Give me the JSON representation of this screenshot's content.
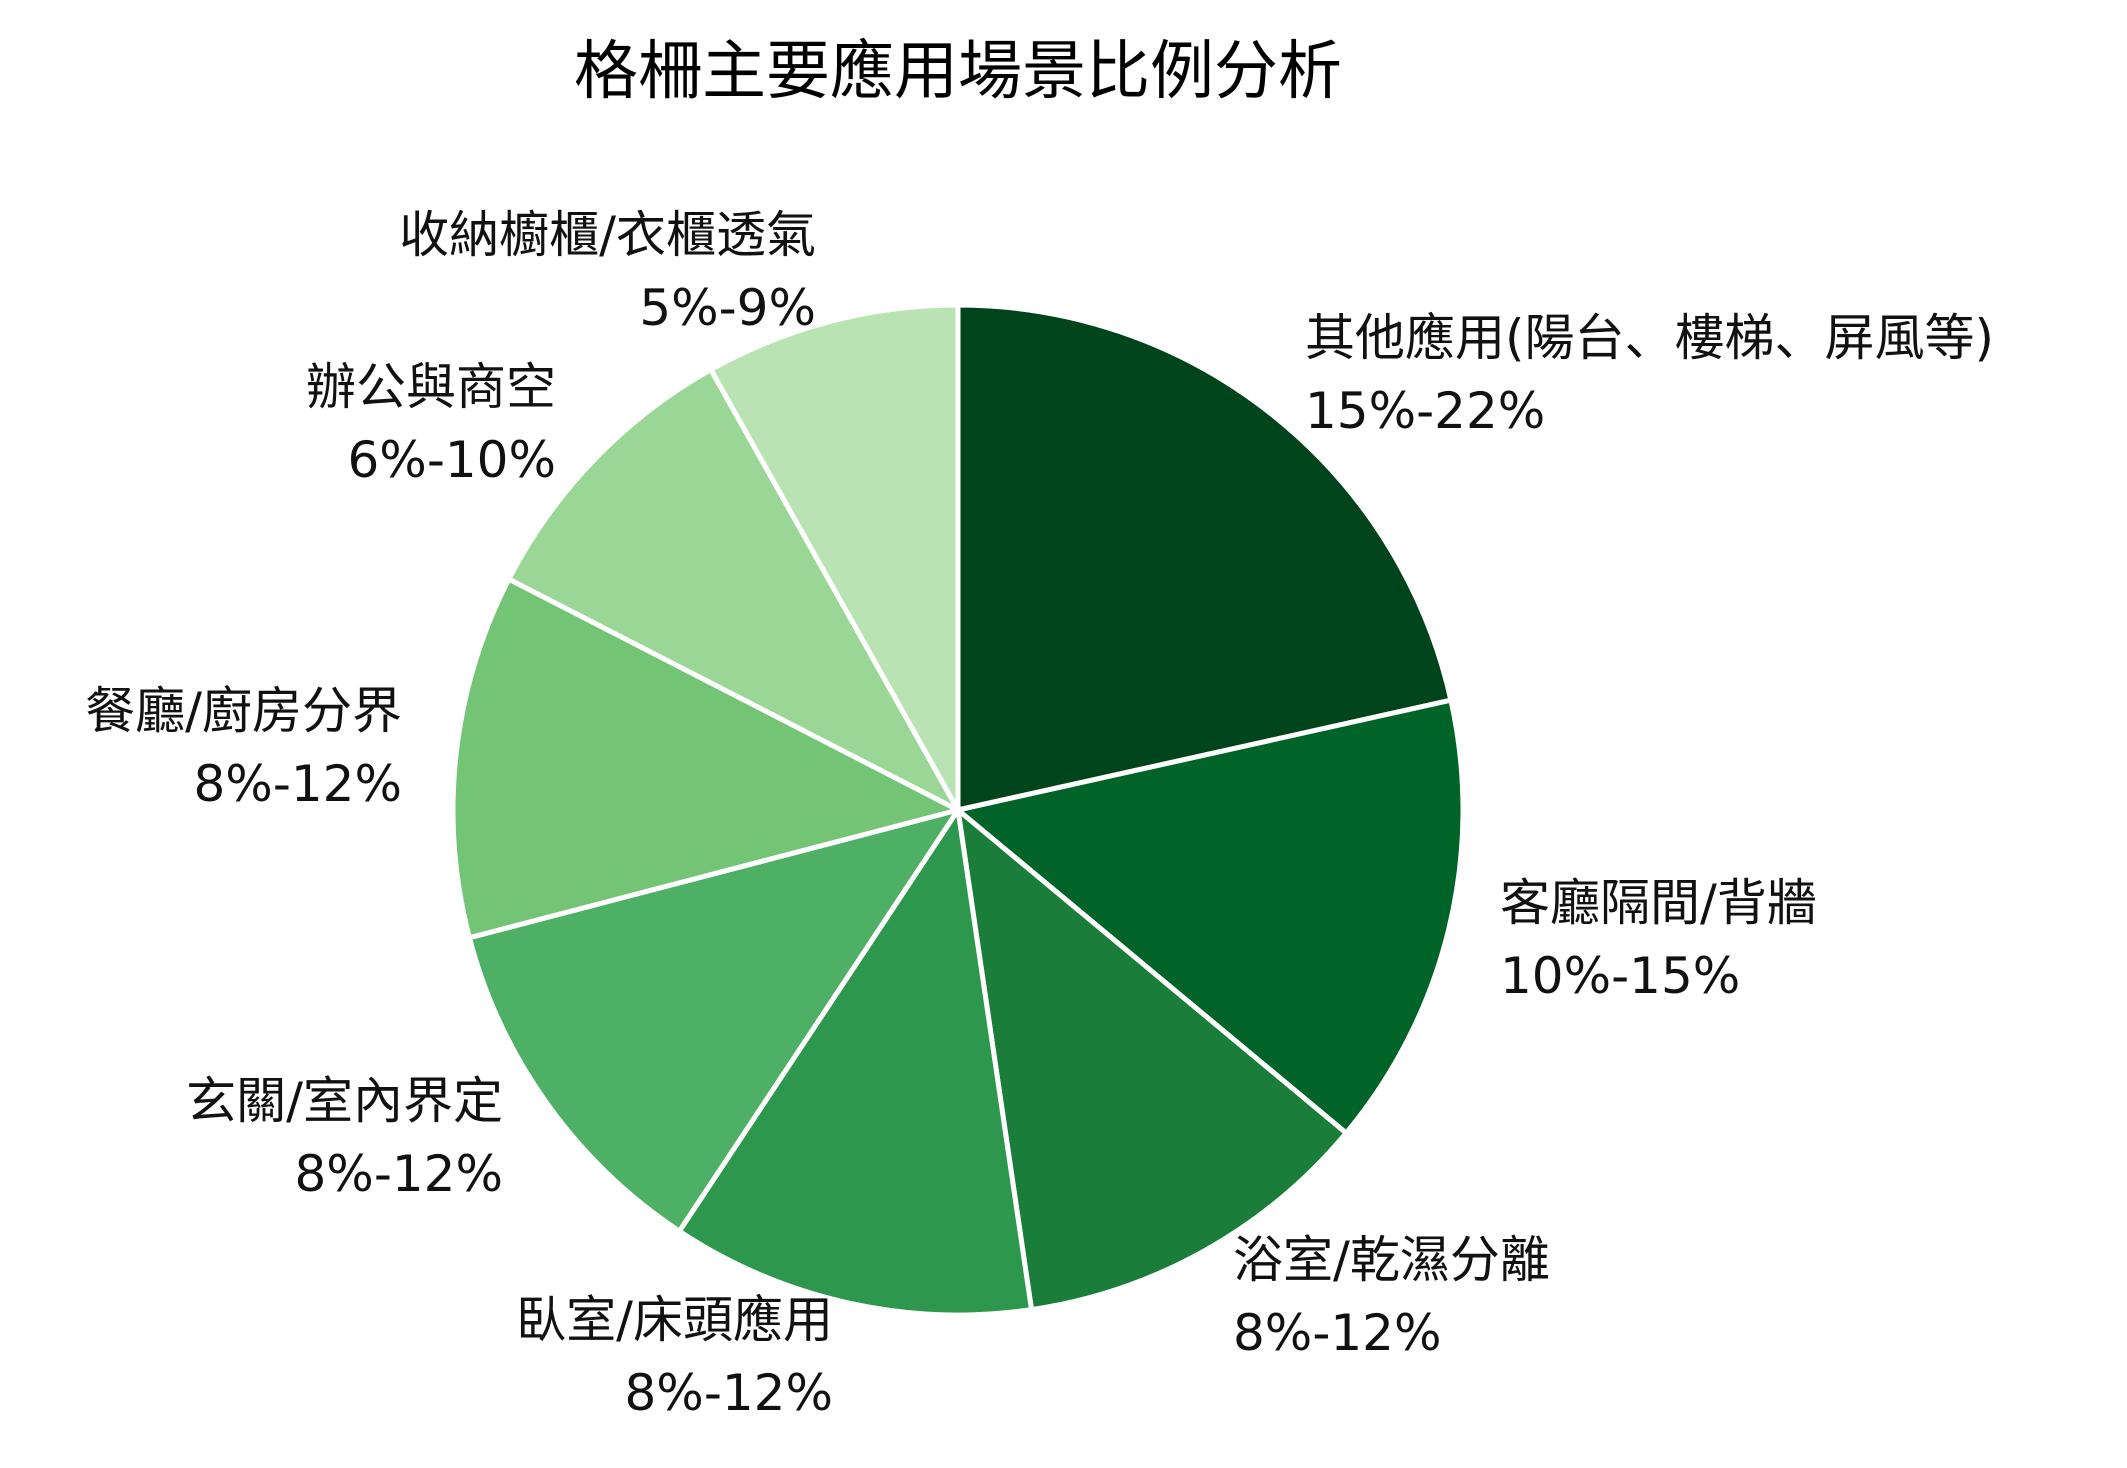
{
  "chart_data": {
    "type": "pie",
    "title": "格柵主要應用場景比例分析",
    "unit": "%",
    "start_angle_deg": 0,
    "direction": "clockwise",
    "slices": [
      {
        "label": "其他應用(陽台、樓梯、屏風等)",
        "range": "15%-22%",
        "value": 18.5,
        "color": "#00441b"
      },
      {
        "label": "客廳隔間/背牆",
        "range": "10%-15%",
        "value": 12.5,
        "color": "#006428"
      },
      {
        "label": "浴室/乾濕分離",
        "range": "8%-12%",
        "value": 10,
        "color": "#1b7d3a"
      },
      {
        "label": "臥室/床頭應用",
        "range": "8%-12%",
        "value": 10,
        "color": "#2e974e"
      },
      {
        "label": "玄關/室內界定",
        "range": "8%-12%",
        "value": 10,
        "color": "#4db064"
      },
      {
        "label": "餐廳/廚房分界",
        "range": "8%-12%",
        "value": 10,
        "color": "#74c476"
      },
      {
        "label": "辦公與商空",
        "range": "6%-10%",
        "value": 8,
        "color": "#9ad695"
      },
      {
        "label": "收納櫥櫃/衣櫃透氣",
        "range": "5%-9%",
        "value": 7,
        "color": "#b9e3b3"
      }
    ]
  }
}
